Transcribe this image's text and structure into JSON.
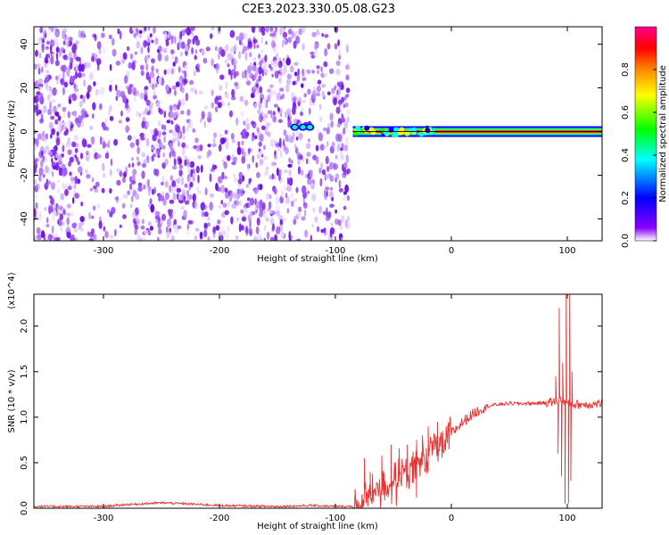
{
  "title": "C2E3.2023.330.05.08.G23",
  "chart_data": [
    {
      "type": "heatmap",
      "xlabel": "Height of straight line (km)",
      "ylabel": "Frequency (Hz)",
      "xlim": [
        -360,
        130
      ],
      "ylim": [
        -50,
        48
      ],
      "xticks": [
        -300,
        -200,
        -100,
        0,
        100
      ],
      "yticks": [
        -40,
        -20,
        0,
        20,
        40
      ],
      "colorbar": {
        "label": "Normalized spectral amplitude",
        "range": [
          0.0,
          1.0
        ],
        "ticks": [
          "0.0",
          "0.2",
          "0.4",
          "0.6",
          "0.8"
        ],
        "colormap": [
          "#ffffff",
          "#8800ff",
          "#0000ff",
          "#00ffff",
          "#00ff00",
          "#ffff00",
          "#ff8800",
          "#ff0000",
          "#ff0088"
        ]
      },
      "features": {
        "noise_band_x": [
          -360,
          -88
        ],
        "signal_start_x": -85,
        "signal_frequency_hz": 0,
        "bright_blobs_x": [
          -135,
          -128,
          -122
        ]
      }
    },
    {
      "type": "line",
      "xlabel": "Height of straight line (km)",
      "ylabel": "SNR (10 * v/v)",
      "yscale_label": "(x10^4)",
      "xlim": [
        -360,
        130
      ],
      "ylim": [
        0,
        2.35
      ],
      "xticks": [
        -300,
        -200,
        -100,
        0,
        100
      ],
      "yticks": [
        0.0,
        0.5,
        1.0,
        1.5,
        2.0
      ],
      "ytick_labels": [
        "0.0",
        "0.5",
        "1.0",
        "1.5",
        "2.0"
      ],
      "color": "#ee3030",
      "series": [
        {
          "x": [
            -360,
            -300,
            -280,
            -250,
            -230,
            -200,
            -150,
            -120,
            -100,
            -90,
            -80,
            -70,
            -60,
            -50,
            -40,
            -30,
            -20,
            -10,
            0,
            10,
            20,
            30,
            40,
            50,
            60,
            70,
            80,
            90,
            95,
            100,
            105,
            110,
            120,
            130
          ],
          "y": [
            0.02,
            0.02,
            0.04,
            0.06,
            0.05,
            0.03,
            0.02,
            0.03,
            0.02,
            0.02,
            0.03,
            0.15,
            0.25,
            0.3,
            0.38,
            0.45,
            0.6,
            0.72,
            0.82,
            0.95,
            1.05,
            1.12,
            1.14,
            1.15,
            1.15,
            1.15,
            1.16,
            1.17,
            1.2,
            1.15,
            1.14,
            1.14,
            1.14,
            1.15
          ],
          "spikes": [
            {
              "x": -75,
              "y": 0.55
            },
            {
              "x": -70,
              "y": 0.4
            },
            {
              "x": -60,
              "y": 0.58
            },
            {
              "x": -52,
              "y": 0.7
            },
            {
              "x": -45,
              "y": 0.66
            },
            {
              "x": -38,
              "y": 0.7
            },
            {
              "x": -30,
              "y": 0.75
            },
            {
              "x": -25,
              "y": 0.8
            },
            {
              "x": -20,
              "y": 0.9
            },
            {
              "x": -12,
              "y": 0.95
            },
            {
              "x": 90,
              "y": 1.45
            },
            {
              "x": 93,
              "y": 2.2
            },
            {
              "x": 96,
              "y": 1.6
            },
            {
              "x": 99,
              "y": 2.35
            },
            {
              "x": 102,
              "y": 2.35
            },
            {
              "x": 104,
              "y": 1.5
            }
          ],
          "dips": [
            {
              "x": 92,
              "y": 0.6
            },
            {
              "x": 95,
              "y": 0.35
            },
            {
              "x": 98,
              "y": 0.05
            },
            {
              "x": 101,
              "y": 0.05
            },
            {
              "x": 103,
              "y": 0.3
            }
          ]
        }
      ]
    }
  ]
}
